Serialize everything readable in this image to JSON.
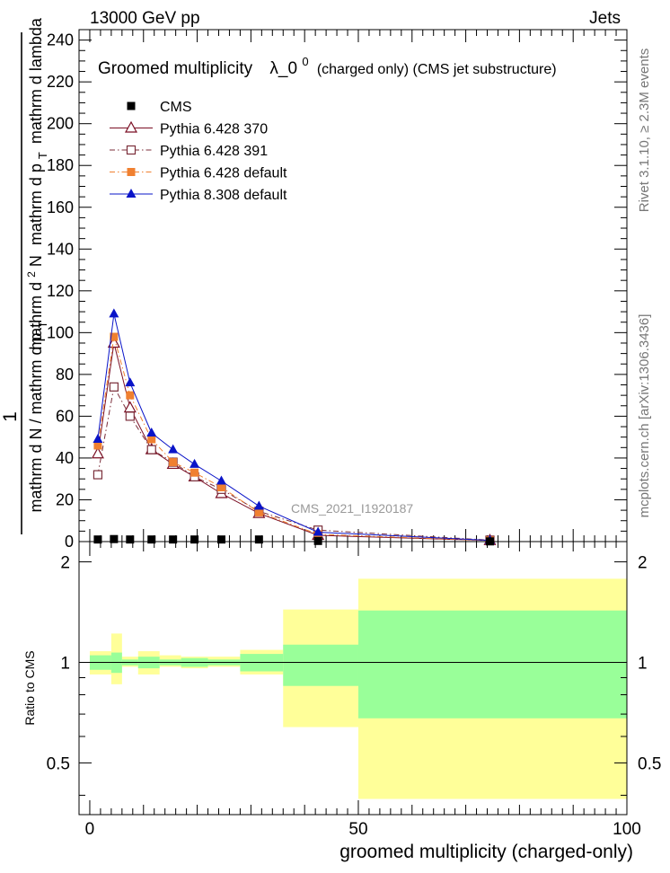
{
  "header": {
    "left": "13000 GeV pp",
    "right": "Jets"
  },
  "side_labels": {
    "rivet": "Rivet 3.1.10, ≥ 2.3M events",
    "mcplots": "mcplots.cern.ch [arXiv:1306.3436]"
  },
  "watermark": "CMS_2021_I1920187",
  "chart_data": [
    {
      "type": "line",
      "title": {
        "main": "Groomed multiplicity",
        "lambda": "λ_0",
        "sup": "0",
        "tail": "(charged only) (CMS jet substructure)"
      },
      "ylabel": {
        "frac_numer": "1",
        "denom": "mathrm d N / mathrm d p",
        "denom_sub": "T",
        "numer_main": "mathrm d",
        "numer_sup": "2",
        "numer_rest": "N",
        "numer_line2": "mathrm d p",
        "numer_line2_sub": "T",
        "numer_line2_rest": "mathrm d lambda"
      },
      "xlim": [
        -2,
        100
      ],
      "ylim": [
        0,
        245
      ],
      "y_ticks": [
        0,
        20,
        40,
        60,
        80,
        100,
        120,
        140,
        160,
        180,
        200,
        220,
        240
      ],
      "x": [
        1.5,
        4.5,
        7.5,
        11.5,
        15.5,
        19.5,
        24.5,
        31.5,
        42.5,
        74.5
      ],
      "bin_edges": [
        0,
        3,
        6,
        9,
        14,
        17,
        22,
        27,
        36,
        50,
        100
      ],
      "series": [
        {
          "name": "CMS",
          "color": "#000000",
          "marker": "square-filled",
          "line": "none",
          "values": [
            1.0,
            1.2,
            1.0,
            1.0,
            1.0,
            1.0,
            1.0,
            1.0,
            0.3,
            0.1
          ]
        },
        {
          "name": "Pythia 6.428 370",
          "color": "#7b0f24",
          "marker": "triangle-open",
          "line": "solid",
          "values": [
            42,
            95,
            64,
            44,
            37,
            31,
            23,
            13.5,
            3.0,
            0.5
          ]
        },
        {
          "name": "Pythia 6.428 391",
          "color": "#7b2e3a",
          "marker": "square-open",
          "line": "dashdot",
          "values": [
            32,
            74,
            60,
            44,
            38,
            31,
            25,
            14.5,
            5.5,
            0.7
          ]
        },
        {
          "name": "Pythia 6.428 default",
          "color": "#f08030",
          "marker": "square-filled",
          "line": "dashdot",
          "values": [
            46,
            98,
            70,
            49,
            38,
            33,
            26,
            14,
            3.5,
            0.5
          ]
        },
        {
          "name": "Pythia 8.308 default",
          "color": "#0a14c8",
          "marker": "triangle-filled",
          "line": "solid",
          "values": [
            49,
            109,
            76,
            52,
            44,
            37,
            29,
            17,
            4.5,
            0.6
          ]
        }
      ]
    },
    {
      "type": "area",
      "ylabel": "Ratio to CMS",
      "xlabel": "groomed multiplicity (charged-only)",
      "xlim": [
        -2,
        100
      ],
      "ylim": [
        0.35,
        2.3
      ],
      "y_tick_labels": [
        0.5,
        1,
        2
      ],
      "x_tick_labels": [
        0,
        50,
        100
      ],
      "reference_line": 1,
      "bin_edges": [
        0,
        4,
        6,
        9,
        13,
        17,
        22,
        28,
        36,
        50,
        100
      ],
      "band_inner": {
        "color": "#99ff99",
        "low": [
          0.95,
          0.93,
          0.98,
          0.96,
          0.98,
          0.97,
          0.98,
          0.94,
          0.85,
          0.68
        ],
        "high": [
          1.05,
          1.07,
          1.02,
          1.04,
          1.02,
          1.03,
          1.02,
          1.06,
          1.13,
          1.43
        ]
      },
      "band_outer": {
        "color": "#ffff99",
        "low": [
          0.92,
          0.86,
          0.97,
          0.92,
          0.97,
          0.96,
          0.97,
          0.92,
          0.64,
          0.39
        ],
        "high": [
          1.08,
          1.22,
          1.04,
          1.08,
          1.05,
          1.04,
          1.04,
          1.09,
          1.44,
          1.78
        ]
      }
    }
  ]
}
